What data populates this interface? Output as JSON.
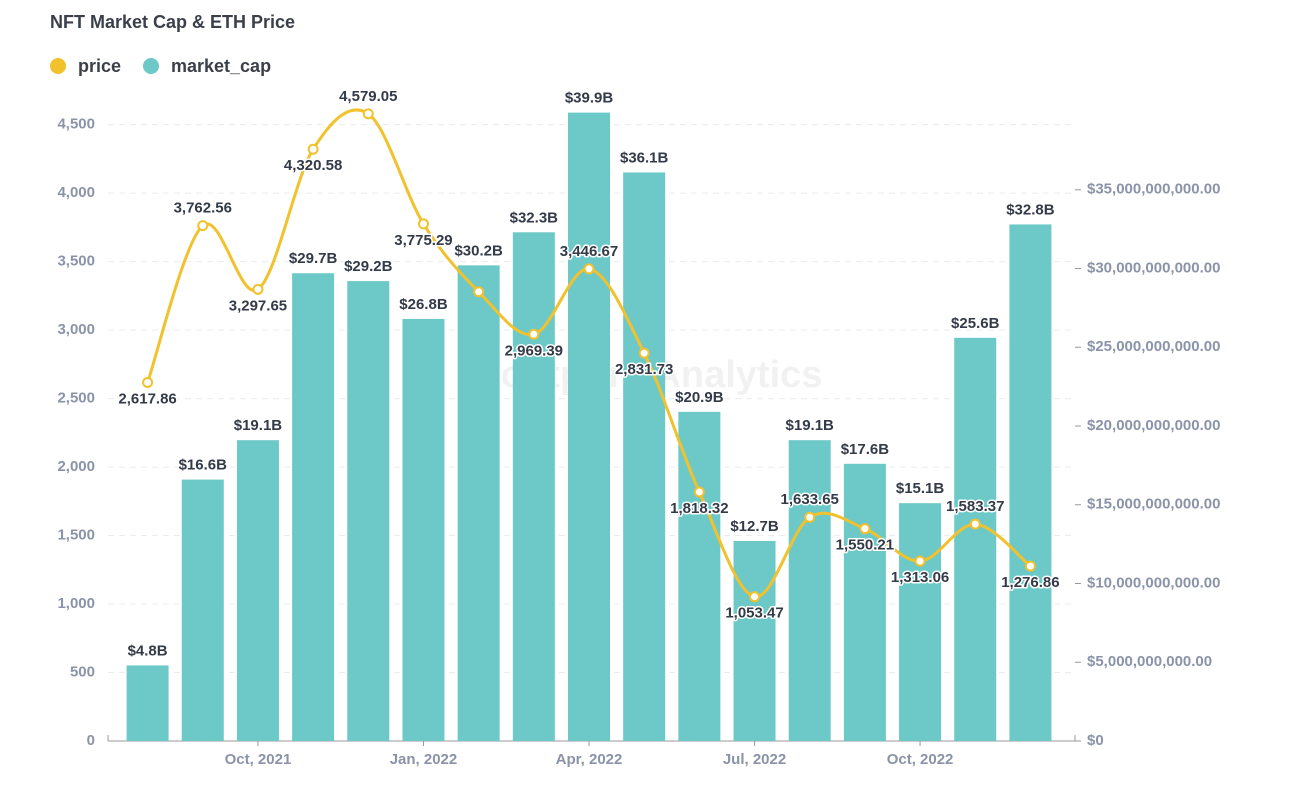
{
  "chart_data": {
    "type": "bar_line",
    "title": "NFT Market Cap & ETH Price",
    "watermark": "Footprint Analytics",
    "categories": [
      null,
      null,
      "Oct, 2021",
      null,
      null,
      "Jan, 2022",
      null,
      null,
      "Apr, 2022",
      null,
      null,
      "Jul, 2022",
      null,
      null,
      "Oct, 2022",
      null,
      null
    ],
    "series": [
      {
        "name": "price",
        "color": "#f2c12e",
        "type": "line",
        "axis": "y",
        "values": [
          2617.86,
          3762.56,
          3297.65,
          4320.58,
          4579.05,
          3775.29,
          3280,
          2969.39,
          3446.67,
          2831.73,
          1818.32,
          1053.47,
          1633.65,
          1550.21,
          1313.06,
          1583.37,
          1276.86
        ],
        "value_labels": [
          "2,617.86",
          "3,762.56",
          "3,297.65",
          "4,320.58",
          "4,579.05",
          "3,775.29",
          null,
          "2,969.39",
          "3,446.67",
          "2,831.73",
          "1,818.32",
          "1,053.47",
          "1,633.65",
          "1,550.21",
          "1,313.06",
          "1,583.37",
          "1,276.86"
        ]
      },
      {
        "name": "market_cap",
        "color": "#6cc9c8",
        "type": "bar",
        "axis": "y2",
        "values": [
          4800000000,
          16600000000,
          19100000000,
          29700000000,
          29200000000,
          26800000000,
          30200000000,
          32300000000,
          39900000000,
          36100000000,
          20900000000,
          12700000000,
          19100000000,
          17600000000,
          15100000000,
          25600000000,
          32800000000
        ],
        "value_labels": [
          "$4.8B",
          "$16.6B",
          "$19.1B",
          "$29.7B",
          "$29.2B",
          "$26.8B",
          "$30.2B",
          "$32.3B",
          "$39.9B",
          "$36.1B",
          "$20.9B",
          "$12.7B",
          "$19.1B",
          "$17.6B",
          "$15.1B",
          "$25.6B",
          "$32.8B"
        ]
      }
    ],
    "ylim": [
      0,
      4680
    ],
    "yticks": [
      0,
      500,
      {
        "value": 1000,
        "label": "1,000"
      },
      {
        "value": 1500,
        "label": "1,500"
      },
      {
        "value": 2000,
        "label": "2,000"
      },
      {
        "value": 2500,
        "label": "2,500"
      },
      {
        "value": 3000,
        "label": "3,000"
      },
      {
        "value": 3500,
        "label": "3,500"
      },
      {
        "value": 4000,
        "label": "4,000"
      },
      {
        "value": 4500,
        "label": "4,500"
      }
    ],
    "y2lim": [
      0,
      40700000000
    ],
    "y2ticks": [
      {
        "value": 0,
        "label": "$0"
      },
      {
        "value": 5000000000,
        "label": "$5,000,000,000.00"
      },
      {
        "value": 10000000000,
        "label": "$10,000,000,000.00"
      },
      {
        "value": 15000000000,
        "label": "$15,000,000,000.00"
      },
      {
        "value": 20000000000,
        "label": "$20,000,000,000.00"
      },
      {
        "value": 25000000000,
        "label": "$25,000,000,000.00"
      },
      {
        "value": 30000000000,
        "label": "$30,000,000,000.00"
      },
      {
        "value": 35000000000,
        "label": "$35,000,000,000.00"
      }
    ],
    "grid": true,
    "legend": "top-left"
  }
}
